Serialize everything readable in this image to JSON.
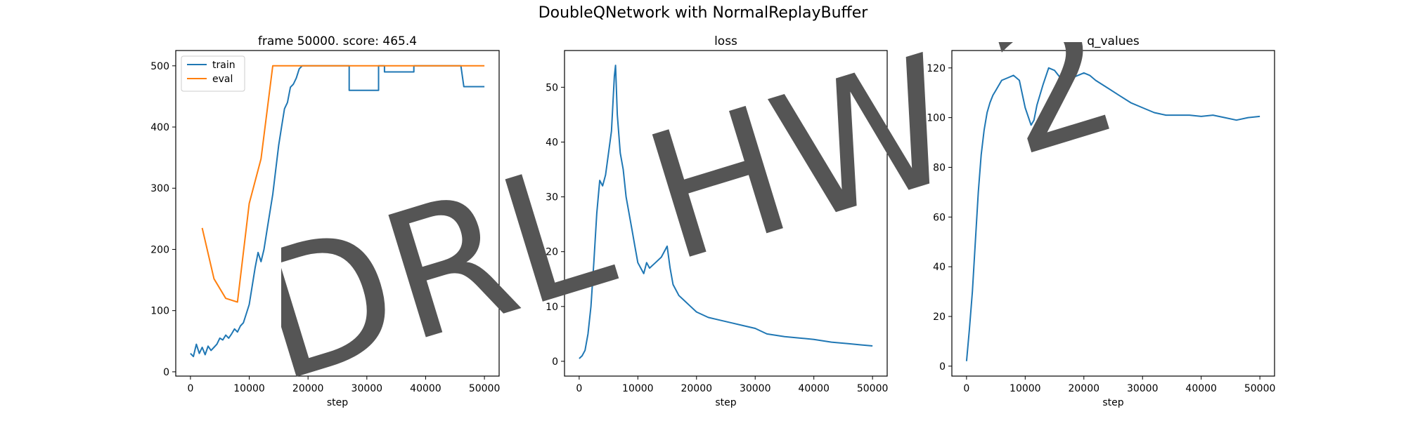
{
  "suptitle": "DoubleQNetwork with NormalReplayBuffer",
  "watermark": "DRL HW 2",
  "colors": {
    "train": "#1f77b4",
    "eval": "#ff7f0e",
    "watermark": "#555555"
  },
  "chart_data": [
    {
      "type": "line",
      "title": "frame 50000. score: 465.4",
      "xlabel": "step",
      "ylabel": "",
      "xlim": [
        -2500,
        52500
      ],
      "ylim": [
        -7,
        525
      ],
      "xticks": [
        0,
        10000,
        20000,
        30000,
        40000,
        50000
      ],
      "yticks": [
        0,
        100,
        200,
        300,
        400,
        500
      ],
      "legend": "top-left",
      "series": [
        {
          "name": "train",
          "color": "#1f77b4",
          "x": [
            0,
            500,
            1000,
            1500,
            2000,
            2500,
            3000,
            3500,
            4000,
            4500,
            5000,
            5500,
            6000,
            6500,
            7000,
            7500,
            8000,
            8500,
            9000,
            9500,
            10000,
            10500,
            11000,
            11500,
            12000,
            12500,
            13000,
            13500,
            14000,
            14500,
            15000,
            15500,
            16000,
            16500,
            17000,
            17500,
            18000,
            18500,
            19000,
            19500,
            20000,
            27000,
            27000,
            32000,
            32000,
            33000,
            33000,
            38000,
            38000,
            41000,
            41000,
            46000,
            46500,
            50000
          ],
          "y": [
            30,
            25,
            45,
            30,
            40,
            28,
            42,
            35,
            40,
            45,
            55,
            52,
            60,
            55,
            62,
            70,
            65,
            75,
            80,
            95,
            110,
            140,
            170,
            195,
            180,
            200,
            230,
            260,
            290,
            330,
            370,
            400,
            430,
            440,
            465,
            470,
            480,
            495,
            500,
            500,
            500,
            500,
            460,
            460,
            500,
            500,
            490,
            490,
            500,
            500,
            500,
            500,
            466,
            466
          ]
        },
        {
          "name": "eval",
          "color": "#ff7f0e",
          "x": [
            2000,
            4000,
            6000,
            8000,
            10000,
            12000,
            14000,
            16000,
            20000,
            30000,
            40000,
            50000
          ],
          "y": [
            235,
            152,
            120,
            114,
            275,
            348,
            500,
            500,
            500,
            500,
            500,
            500
          ]
        }
      ]
    },
    {
      "type": "line",
      "title": "loss",
      "xlabel": "step",
      "ylabel": "",
      "xlim": [
        -2500,
        52500
      ],
      "ylim": [
        -2.7,
        56.7
      ],
      "xticks": [
        0,
        10000,
        20000,
        30000,
        40000,
        50000
      ],
      "yticks": [
        0,
        10,
        20,
        30,
        40,
        50
      ],
      "series": [
        {
          "name": "",
          "color": "#1f77b4",
          "x": [
            0,
            500,
            1000,
            1500,
            2000,
            2500,
            3000,
            3500,
            4000,
            4500,
            5000,
            5500,
            6000,
            6200,
            6500,
            7000,
            7500,
            8000,
            8500,
            9000,
            9500,
            10000,
            10500,
            11000,
            11500,
            12000,
            13000,
            14000,
            15000,
            15500,
            16000,
            17000,
            18000,
            19000,
            20000,
            22000,
            24000,
            26000,
            28000,
            30000,
            32000,
            35000,
            38000,
            40000,
            43000,
            46000,
            48000,
            50000
          ],
          "y": [
            0.5,
            1,
            2,
            5,
            10,
            18,
            27,
            33,
            32,
            34,
            38,
            42,
            52,
            54,
            45,
            38,
            35,
            30,
            27,
            24,
            21,
            18,
            17,
            16,
            18,
            17,
            18,
            19,
            21,
            17,
            14,
            12,
            11,
            10,
            9,
            8,
            7.5,
            7,
            6.5,
            6,
            5,
            4.5,
            4.2,
            4,
            3.5,
            3.2,
            3,
            2.8
          ]
        }
      ]
    },
    {
      "type": "line",
      "title": "q_values",
      "xlabel": "step",
      "ylabel": "",
      "xlim": [
        -2500,
        52500
      ],
      "ylim": [
        -4,
        127
      ],
      "xticks": [
        0,
        10000,
        20000,
        30000,
        40000,
        50000
      ],
      "yticks": [
        0,
        20,
        40,
        60,
        80,
        100,
        120
      ],
      "series": [
        {
          "name": "",
          "color": "#1f77b4",
          "x": [
            0,
            500,
            1000,
            1500,
            2000,
            2500,
            3000,
            3500,
            4000,
            4500,
            5000,
            6000,
            7000,
            8000,
            9000,
            10000,
            11000,
            11500,
            12000,
            13000,
            14000,
            15000,
            16000,
            17000,
            18000,
            19000,
            20000,
            21000,
            22000,
            24000,
            26000,
            28000,
            30000,
            32000,
            34000,
            36000,
            38000,
            40000,
            42000,
            44000,
            46000,
            48000,
            50000
          ],
          "y": [
            2,
            15,
            30,
            50,
            70,
            85,
            95,
            102,
            106,
            109,
            111,
            115,
            116,
            117,
            115,
            104,
            97,
            99,
            105,
            113,
            120,
            119,
            116,
            115,
            116,
            117,
            118,
            117,
            115,
            112,
            109,
            106,
            104,
            102,
            101,
            101,
            101,
            100.5,
            101,
            100,
            99,
            100,
            100.5
          ]
        }
      ]
    }
  ]
}
